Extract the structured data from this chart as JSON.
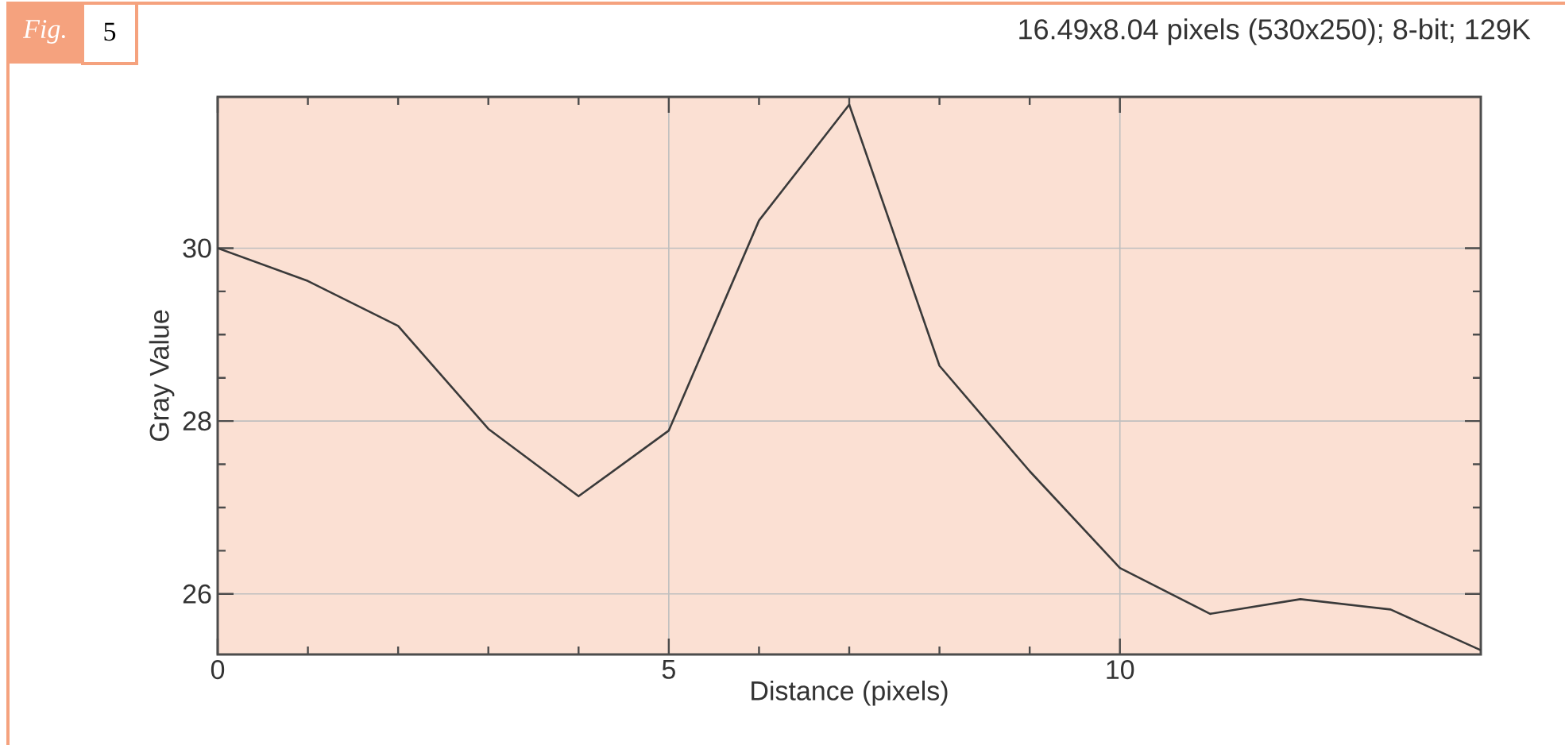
{
  "chart_data": {
    "type": "line",
    "title": "16.49x8.04 pixels (530x250); 8-bit; 129K",
    "xlabel": "Distance (pixels)",
    "ylabel": "Gray Value",
    "annotations": [
      "Fig.",
      "5"
    ],
    "x": [
      0,
      1,
      2,
      3,
      4,
      5,
      6,
      7,
      8,
      9,
      10,
      11,
      12,
      13,
      14
    ],
    "values": [
      30.0,
      29.62,
      29.1,
      27.91,
      27.13,
      27.89,
      30.32,
      31.66,
      28.64,
      27.42,
      26.3,
      25.77,
      25.94,
      25.82,
      25.35
    ],
    "color": "#3a3a3a",
    "line_style": "solid",
    "marker": "none",
    "xlim": [
      0,
      14
    ],
    "ylim": [
      25.3,
      31.75
    ],
    "xticks": [
      0,
      5,
      10
    ],
    "yticks": [
      26,
      28,
      30
    ],
    "grid": true
  }
}
